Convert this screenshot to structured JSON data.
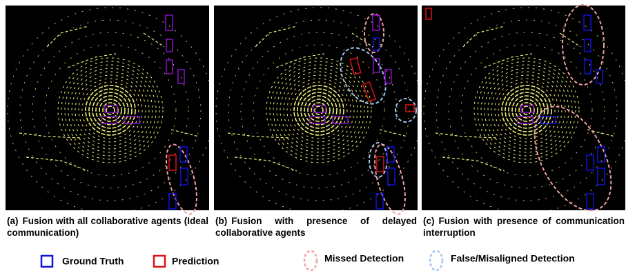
{
  "panels": [
    {
      "tag": "(a)",
      "caption": "Fusion with all collaborative agents (Ideal communication)"
    },
    {
      "tag": "(b)",
      "caption": "Fusion with presence of delayed collaborative agents"
    },
    {
      "tag": "(c)",
      "caption": "Fusion with presence of communication interruption"
    }
  ],
  "legend": [
    "Ground Truth",
    "Prediction",
    "Missed Detection",
    "False/Misaligned Detection"
  ]
}
